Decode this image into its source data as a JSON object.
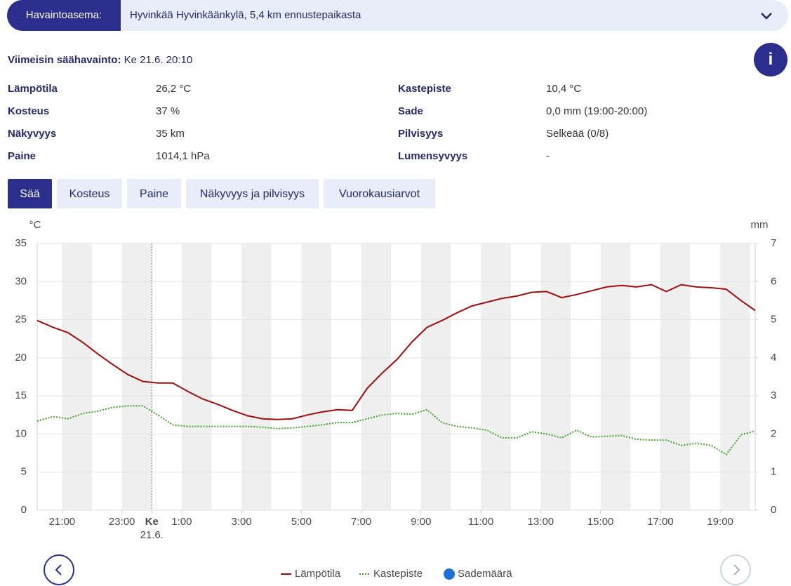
{
  "station": {
    "label": "Havaintoasema:",
    "value": "Hyvinkää Hyvinkäänkylä, 5,4 km ennustepaikasta"
  },
  "latest": {
    "label": "Viimeisin säähavainto:",
    "value": "Ke 21.6. 20:10"
  },
  "observations": {
    "left": [
      {
        "label": "Lämpötila",
        "value": "26,2 °C"
      },
      {
        "label": "Kosteus",
        "value": "37 %"
      },
      {
        "label": "Näkyvyys",
        "value": "35 km"
      },
      {
        "label": "Paine",
        "value": "1014,1 hPa"
      }
    ],
    "right": [
      {
        "label": "Kastepiste",
        "value": "10,4 °C"
      },
      {
        "label": "Sade",
        "value": "0,0 mm (19:00-20:00)"
      },
      {
        "label": "Pilvisyys",
        "value": "Selkeää (0/8)"
      },
      {
        "label": "Lumensyvyys",
        "value": "-"
      }
    ]
  },
  "tabs": [
    "Sää",
    "Kosteus",
    "Paine",
    "Näkyvyys ja pilvisyys",
    "Vuorokausiarvot"
  ],
  "active_tab": 0,
  "chart_data": {
    "type": "line",
    "y_unit": "°C",
    "y2_unit": "mm",
    "xlim": [
      -3.83,
      20.17
    ],
    "xticks": [
      {
        "value": -3,
        "label": "21:00"
      },
      {
        "value": -1,
        "label": "23:00"
      },
      {
        "value": 0,
        "label": "Ke",
        "sublabel": "21.6."
      },
      {
        "value": 1,
        "label": "1:00"
      },
      {
        "value": 3,
        "label": "3:00"
      },
      {
        "value": 5,
        "label": "5:00"
      },
      {
        "value": 7,
        "label": "7:00"
      },
      {
        "value": 9,
        "label": "9:00"
      },
      {
        "value": 11,
        "label": "11:00"
      },
      {
        "value": 13,
        "label": "13:00"
      },
      {
        "value": 15,
        "label": "15:00"
      },
      {
        "value": 17,
        "label": "17:00"
      },
      {
        "value": 19,
        "label": "19:00"
      }
    ],
    "ylim": [
      0,
      35
    ],
    "yticks": [
      0,
      5,
      10,
      15,
      20,
      25,
      30,
      35
    ],
    "y2lim": [
      0,
      7
    ],
    "y2ticks": [
      0,
      1,
      2,
      3,
      4,
      5,
      6,
      7
    ],
    "grid": true,
    "x": [
      -3.83,
      -3.3,
      -2.8,
      -2.3,
      -1.8,
      -1.3,
      -0.8,
      -0.3,
      0.2,
      0.7,
      1.2,
      1.7,
      2.2,
      2.7,
      3.2,
      3.7,
      4.2,
      4.7,
      5.2,
      5.7,
      6.2,
      6.7,
      7.2,
      7.7,
      8.2,
      8.7,
      9.2,
      9.7,
      10.2,
      10.7,
      11.2,
      11.7,
      12.2,
      12.7,
      13.2,
      13.7,
      14.2,
      14.7,
      15.2,
      15.7,
      16.2,
      16.7,
      17.2,
      17.7,
      18.2,
      18.7,
      19.2,
      19.7,
      20.17
    ],
    "series": [
      {
        "name": "Lämpötila",
        "color": "#a10d0d",
        "style": "solid",
        "values": [
          24.9,
          24.0,
          23.3,
          22.0,
          20.5,
          19.1,
          17.8,
          16.9,
          16.7,
          16.7,
          15.6,
          14.6,
          13.9,
          13.1,
          12.4,
          12.0,
          11.9,
          12.0,
          12.5,
          12.9,
          13.2,
          13.1,
          16.0,
          18.0,
          19.8,
          22.1,
          24.0,
          24.9,
          25.9,
          26.8,
          27.3,
          27.8,
          28.1,
          28.6,
          28.7,
          27.9,
          28.3,
          28.8,
          29.3,
          29.5,
          29.3,
          29.6,
          28.7,
          29.6,
          29.3,
          29.2,
          29.0,
          27.5,
          26.2
        ]
      },
      {
        "name": "Kastepiste",
        "color": "#3da526",
        "style": "dotted",
        "values": [
          11.7,
          12.3,
          12.0,
          12.7,
          13.0,
          13.5,
          13.7,
          13.7,
          12.5,
          11.2,
          11.0,
          11.0,
          11.0,
          11.0,
          11.0,
          10.9,
          10.7,
          10.8,
          11.0,
          11.2,
          11.5,
          11.5,
          12.0,
          12.5,
          12.7,
          12.6,
          13.2,
          11.5,
          11.0,
          10.8,
          10.5,
          9.5,
          9.5,
          10.3,
          10.0,
          9.5,
          10.5,
          9.6,
          9.7,
          9.8,
          9.3,
          9.2,
          9.2,
          8.5,
          8.8,
          8.5,
          7.3,
          9.9,
          10.4
        ]
      },
      {
        "name": "Sademäärä",
        "color": "#1f6fd6",
        "style": "dot",
        "axis": "y2",
        "values": [
          null,
          null,
          null,
          null,
          null,
          null,
          null,
          null,
          null,
          null,
          null,
          null,
          null,
          null,
          null,
          null,
          null,
          null,
          null,
          null,
          null,
          null,
          null,
          null,
          null,
          null,
          null,
          null,
          null,
          null,
          null,
          null,
          null,
          null,
          null,
          null,
          null,
          null,
          null,
          null,
          null,
          null,
          null,
          null,
          null,
          null,
          null,
          null,
          null
        ]
      }
    ]
  }
}
